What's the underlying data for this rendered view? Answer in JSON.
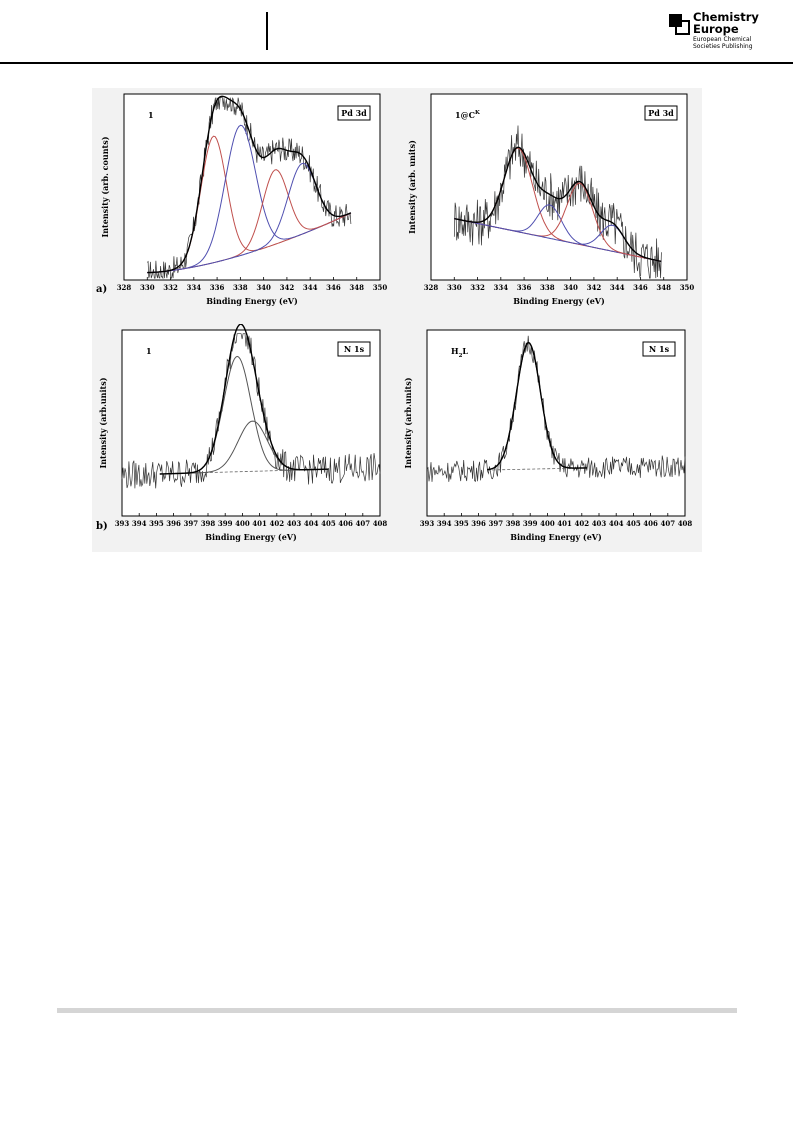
{
  "header": {
    "brand_line1": "Chemistry",
    "brand_line2": "Europe",
    "brand_sub1": "European Chemical",
    "brand_sub2": "Societies Publishing"
  },
  "figure": {
    "row_a_label": "a)",
    "row_b_label": "b)"
  },
  "chart_data": [
    {
      "type": "line",
      "sample": "1",
      "region": "Pd 3d",
      "xlabel": "Binding Energy (eV)",
      "ylabel": "Intensity (arb. counts)",
      "xlim": [
        328,
        350
      ],
      "x_ticks": [
        328,
        330,
        332,
        334,
        336,
        338,
        340,
        342,
        344,
        346,
        348,
        350
      ],
      "data_range": [
        330,
        347.5
      ],
      "background": {
        "style": "dashed",
        "start": 0.04,
        "end": 0.36
      },
      "noise": 0.07,
      "peaks": [
        {
          "center": 335.7,
          "height": 0.68,
          "width": 1.1,
          "color": "#c0504d"
        },
        {
          "center": 338.0,
          "height": 0.7,
          "width": 1.3,
          "color": "#4f4fb0"
        },
        {
          "center": 341.0,
          "height": 0.4,
          "width": 1.1,
          "color": "#c0504d"
        },
        {
          "center": 343.3,
          "height": 0.38,
          "width": 1.2,
          "color": "#4f4fb0"
        }
      ]
    },
    {
      "type": "line",
      "sample": "1@C",
      "sample_sup": "K",
      "region": "Pd 3d",
      "xlabel": "Binding Energy (eV)",
      "ylabel": "Intensity (arb. units)",
      "xlim": [
        328,
        350
      ],
      "x_ticks": [
        328,
        330,
        332,
        334,
        336,
        338,
        340,
        342,
        344,
        346,
        348,
        350
      ],
      "data_range": [
        330,
        347.8
      ],
      "background": {
        "style": "dashed",
        "start": 0.33,
        "end": 0.1
      },
      "noise": 0.13,
      "peaks": [
        {
          "center": 335.5,
          "height": 0.45,
          "width": 1.2,
          "color": "#c0504d"
        },
        {
          "center": 338.2,
          "height": 0.18,
          "width": 1.0,
          "color": "#4f4fb0"
        },
        {
          "center": 340.8,
          "height": 0.33,
          "width": 1.1,
          "color": "#c0504d"
        },
        {
          "center": 343.6,
          "height": 0.14,
          "width": 1.0,
          "color": "#4f4fb0"
        }
      ]
    },
    {
      "type": "line",
      "sample": "1",
      "region": "N 1s",
      "xlabel": "Binding Energy (eV)",
      "ylabel": "Intensity (arb.units)",
      "xlim": [
        393,
        408
      ],
      "x_ticks": [
        393,
        394,
        395,
        396,
        397,
        398,
        399,
        400,
        401,
        402,
        403,
        404,
        405,
        406,
        407,
        408
      ],
      "data_range": [
        393,
        408
      ],
      "fit_range": [
        395.2,
        405
      ],
      "background": {
        "style": "dashed",
        "start": 0.22,
        "end": 0.26
      },
      "noise": 0.08,
      "peaks": [
        {
          "center": 399.7,
          "height": 0.62,
          "width": 0.8,
          "color": "#555555"
        },
        {
          "center": 400.6,
          "height": 0.27,
          "width": 0.85,
          "color": "#555555"
        }
      ]
    },
    {
      "type": "line",
      "sample": "H",
      "sample_sub": "2",
      "sample_tail": "L",
      "region": "N 1s",
      "xlabel": "Binding Energy (eV)",
      "ylabel": "Intensity (arb.units)",
      "xlim": [
        393,
        408
      ],
      "x_ticks": [
        393,
        394,
        395,
        396,
        397,
        398,
        399,
        400,
        401,
        402,
        403,
        404,
        405,
        406,
        407,
        408
      ],
      "data_range": [
        393,
        408
      ],
      "fit_range": [
        396.5,
        402.3
      ],
      "background": {
        "style": "dashed",
        "start": 0.24,
        "end": 0.27
      },
      "noise": 0.06,
      "peaks": [
        {
          "center": 398.9,
          "height": 0.68,
          "width": 0.7,
          "color": "#333333"
        }
      ]
    }
  ]
}
